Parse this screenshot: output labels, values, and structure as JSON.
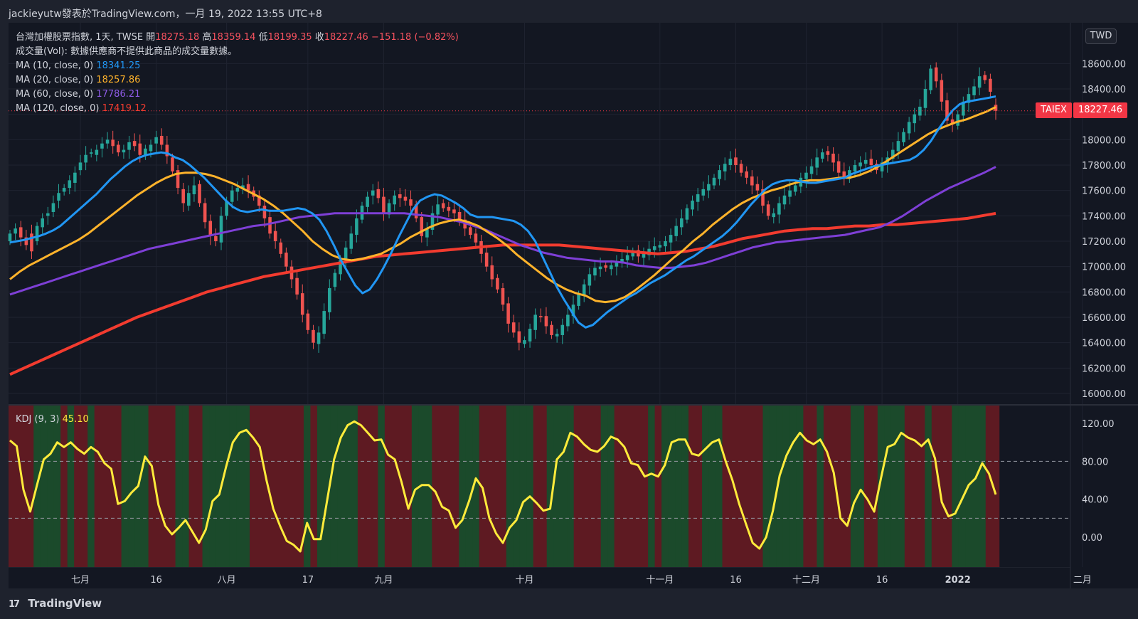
{
  "header": {
    "text": "jackieyutw發表於TradingView.com，一月 19, 2022 13:55 UTC+8"
  },
  "legend": {
    "title_prefix": "台灣加權股票指數, 1天, TWSE",
    "open_label": "開",
    "open": "18275.18",
    "high_label": "高",
    "high": "18359.14",
    "low_label": "低",
    "low": "18199.35",
    "close_label": "收",
    "close": "18227.46",
    "change": "−151.18 (−0.82%)",
    "volume_note": "成交量(Vol): 數據供應商不提供此商品的成交量數據。",
    "ma10_label": "MA (10, close, 0)",
    "ma10": "18341.25",
    "ma20_label": "MA (20, close, 0)",
    "ma20": "18257.86",
    "ma60_label": "MA (60, close, 0)",
    "ma60": "17786.21",
    "ma120_label": "MA (120, close, 0)",
    "ma120": "17419.12"
  },
  "kdj": {
    "label": "KDJ (9, 3)",
    "value": "45.10"
  },
  "tags": {
    "currency": "TWD",
    "symbol": "TAIEX",
    "last_price": "18227.46"
  },
  "brand": {
    "logo": "17",
    "name": "TradingView"
  },
  "colors": {
    "background": "#1e222d",
    "up": "#26a69a",
    "down": "#ef5350",
    "ma10": "#2196f3",
    "ma20": "#ffb32b",
    "ma60": "#7e3fd6",
    "ma120": "#f23b2f",
    "kdj": "#ffeb3b",
    "kdj_bg_up": "#1b4a2b",
    "kdj_bg_down": "#5e1a22"
  },
  "chart_data": [
    {
      "type": "candlestick",
      "ylim": [
        16000,
        18800
      ],
      "y_ticks": [
        "16000.00",
        "16200.00",
        "16400.00",
        "16600.00",
        "16800.00",
        "17000.00",
        "17200.00",
        "17400.00",
        "17600.00",
        "17800.00",
        "18000.00",
        "18200.00",
        "18400.00",
        "18600.00"
      ],
      "x_ticks": [
        {
          "label": "七月",
          "index": 13
        },
        {
          "label": "16",
          "index": 27
        },
        {
          "label": "八月",
          "index": 40
        },
        {
          "label": "17",
          "index": 55
        },
        {
          "label": "九月",
          "index": 69
        },
        {
          "label": "十月",
          "index": 95
        },
        {
          "label": "十一月",
          "index": 120
        },
        {
          "label": "16",
          "index": 134
        },
        {
          "label": "十二月",
          "index": 147
        },
        {
          "label": "16",
          "index": 161
        },
        {
          "label": "2022",
          "index": 175
        },
        {
          "label": "二月",
          "index": 198
        }
      ],
      "close_series": [
        17260,
        17300,
        17230,
        17170,
        17120,
        17320,
        17380,
        17420,
        17500,
        17580,
        17620,
        17680,
        17740,
        17820,
        17880,
        17900,
        17920,
        17970,
        18000,
        17950,
        17900,
        17920,
        17980,
        17950,
        17880,
        17930,
        17960,
        18020,
        17960,
        17870,
        17750,
        17620,
        17500,
        17580,
        17640,
        17500,
        17350,
        17240,
        17200,
        17400,
        17520,
        17600,
        17620,
        17640,
        17600,
        17550,
        17480,
        17380,
        17260,
        17200,
        17100,
        17000,
        16900,
        16780,
        16620,
        16500,
        16400,
        16480,
        16650,
        16830,
        16950,
        17050,
        17150,
        17260,
        17380,
        17480,
        17550,
        17600,
        17540,
        17420,
        17500,
        17560,
        17540,
        17520,
        17480,
        17380,
        17240,
        17300,
        17420,
        17490,
        17460,
        17440,
        17420,
        17360,
        17300,
        17250,
        17190,
        17100,
        17000,
        16900,
        16820,
        16700,
        16550,
        16480,
        16400,
        16420,
        16510,
        16620,
        16600,
        16530,
        16460,
        16470,
        16540,
        16620,
        16700,
        16780,
        16860,
        16940,
        16990,
        17000,
        16990,
        17010,
        17040,
        17060,
        17090,
        17120,
        17080,
        17100,
        17140,
        17160,
        17170,
        17200,
        17250,
        17320,
        17380,
        17460,
        17520,
        17570,
        17610,
        17650,
        17700,
        17760,
        17810,
        17850,
        17800,
        17740,
        17700,
        17640,
        17600,
        17480,
        17400,
        17420,
        17500,
        17560,
        17600,
        17640,
        17700,
        17740,
        17790,
        17860,
        17900,
        17880,
        17820,
        17740,
        17700,
        17760,
        17800,
        17820,
        17840,
        17800,
        17760,
        17820,
        17860,
        17920,
        17990,
        18060,
        18140,
        18200,
        18260,
        18400,
        18560,
        18460,
        18300,
        18150,
        18120,
        18200,
        18300,
        18360,
        18420,
        18500,
        18470,
        18378,
        18227
      ],
      "open_series": [
        17200,
        17260,
        17310,
        17230,
        17260,
        17200,
        17310,
        17400,
        17430,
        17520,
        17590,
        17620,
        17660,
        17760,
        17820,
        17890,
        17880,
        17930,
        17970,
        18000,
        17960,
        17900,
        17920,
        17990,
        17970,
        17870,
        17910,
        17970,
        18030,
        17960,
        17860,
        17760,
        17610,
        17480,
        17570,
        17650,
        17500,
        17360,
        17240,
        17190,
        17400,
        17510,
        17590,
        17610,
        17650,
        17600,
        17560,
        17480,
        17390,
        17280,
        17190,
        17110,
        17000,
        16910,
        16790,
        16630,
        16500,
        16390,
        16470,
        16640,
        16840,
        16940,
        17050,
        17140,
        17250,
        17370,
        17470,
        17560,
        17610,
        17550,
        17410,
        17490,
        17570,
        17550,
        17530,
        17490,
        17390,
        17230,
        17290,
        17410,
        17500,
        17470,
        17450,
        17430,
        17370,
        17310,
        17260,
        17200,
        17110,
        17010,
        16910,
        16830,
        16710,
        16560,
        16490,
        16390,
        16410,
        16500,
        16610,
        16610,
        16540,
        16450,
        16460,
        16530,
        16610,
        16690,
        16770,
        16850,
        16930,
        16980,
        17010,
        16980,
        17000,
        17030,
        17050,
        17080,
        17130,
        17070,
        17090,
        17130,
        17150,
        17160,
        17190,
        17240,
        17310,
        17370,
        17450,
        17510,
        17560,
        17600,
        17640,
        17690,
        17750,
        17800,
        17860,
        17810,
        17750,
        17710,
        17650,
        17610,
        17490,
        17390,
        17410,
        17490,
        17550,
        17590,
        17630,
        17690,
        17730,
        17780,
        17850,
        17910,
        17890,
        17830,
        17750,
        17690,
        17750,
        17790,
        17810,
        17850,
        17810,
        17750,
        17810,
        17850,
        17910,
        17980,
        18050,
        18130,
        18190,
        18250,
        18390,
        18570,
        18470,
        18310,
        18160,
        18110,
        18190,
        18290,
        18350,
        18410,
        18510,
        18480,
        18275
      ],
      "ma10": [
        17190,
        17200,
        17210,
        17225,
        17240,
        17260,
        17285,
        17320,
        17370,
        17420,
        17470,
        17520,
        17570,
        17630,
        17690,
        17740,
        17790,
        17830,
        17860,
        17880,
        17890,
        17900,
        17890,
        17860,
        17840,
        17800,
        17750,
        17700,
        17640,
        17580,
        17520,
        17470,
        17440,
        17430,
        17440,
        17450,
        17440,
        17440,
        17440,
        17450,
        17460,
        17450,
        17420,
        17370,
        17280,
        17170,
        17050,
        16950,
        16850,
        16790,
        16820,
        16900,
        17000,
        17110,
        17230,
        17340,
        17450,
        17520,
        17550,
        17570,
        17560,
        17530,
        17500,
        17460,
        17410,
        17390,
        17390,
        17390,
        17380,
        17370,
        17360,
        17330,
        17280,
        17200,
        17080,
        16960,
        16840,
        16740,
        16650,
        16560,
        16520,
        16540,
        16590,
        16640,
        16680,
        16720,
        16760,
        16790,
        16830,
        16870,
        16900,
        16930,
        16970,
        17010,
        17050,
        17080,
        17120,
        17160,
        17200,
        17240,
        17290,
        17350,
        17420,
        17490,
        17550,
        17610,
        17650,
        17670,
        17680,
        17680,
        17670,
        17660,
        17660,
        17670,
        17680,
        17690,
        17700,
        17730,
        17750,
        17770,
        17790,
        17800,
        17810,
        17820,
        17830,
        17840,
        17870,
        17920,
        17990,
        18080,
        18160,
        18230,
        18280,
        18300,
        18310,
        18320,
        18330,
        18341
      ],
      "ma20": [
        16900,
        16960,
        17010,
        17050,
        17090,
        17130,
        17170,
        17210,
        17260,
        17320,
        17380,
        17440,
        17500,
        17560,
        17610,
        17660,
        17700,
        17730,
        17740,
        17740,
        17730,
        17710,
        17680,
        17650,
        17610,
        17570,
        17530,
        17480,
        17420,
        17350,
        17280,
        17200,
        17140,
        17090,
        17060,
        17050,
        17060,
        17080,
        17100,
        17140,
        17180,
        17230,
        17270,
        17310,
        17340,
        17360,
        17370,
        17350,
        17320,
        17270,
        17220,
        17160,
        17090,
        17030,
        16970,
        16910,
        16860,
        16820,
        16790,
        16770,
        16730,
        16720,
        16730,
        16760,
        16810,
        16870,
        16930,
        17000,
        17070,
        17130,
        17200,
        17260,
        17330,
        17390,
        17450,
        17500,
        17540,
        17570,
        17600,
        17620,
        17650,
        17670,
        17680,
        17680,
        17690,
        17700,
        17700,
        17720,
        17750,
        17790,
        17840,
        17890,
        17940,
        17990,
        18040,
        18080,
        18110,
        18140,
        18160,
        18190,
        18220,
        18257
      ],
      "ma60": [
        16780,
        16810,
        16840,
        16870,
        16900,
        16930,
        16960,
        16990,
        17020,
        17050,
        17080,
        17110,
        17140,
        17160,
        17180,
        17200,
        17220,
        17240,
        17260,
        17280,
        17300,
        17320,
        17330,
        17350,
        17370,
        17390,
        17400,
        17410,
        17420,
        17420,
        17420,
        17420,
        17420,
        17420,
        17420,
        17410,
        17400,
        17390,
        17370,
        17350,
        17320,
        17290,
        17250,
        17210,
        17170,
        17140,
        17110,
        17090,
        17070,
        17060,
        17050,
        17040,
        17040,
        17030,
        17010,
        17000,
        16990,
        16990,
        17000,
        17010,
        17030,
        17060,
        17090,
        17120,
        17150,
        17170,
        17190,
        17200,
        17210,
        17220,
        17230,
        17240,
        17250,
        17270,
        17290,
        17310,
        17350,
        17400,
        17460,
        17520,
        17570,
        17620,
        17660,
        17700,
        17740,
        17786
      ],
      "ma120": [
        16150,
        16200,
        16250,
        16300,
        16350,
        16400,
        16450,
        16500,
        16550,
        16600,
        16640,
        16680,
        16720,
        16760,
        16800,
        16830,
        16860,
        16890,
        16920,
        16940,
        16960,
        16980,
        17000,
        17020,
        17040,
        17060,
        17080,
        17090,
        17100,
        17110,
        17120,
        17130,
        17140,
        17150,
        17160,
        17170,
        17170,
        17170,
        17170,
        17170,
        17160,
        17150,
        17140,
        17130,
        17120,
        17110,
        17100,
        17110,
        17120,
        17140,
        17160,
        17190,
        17220,
        17240,
        17260,
        17280,
        17290,
        17300,
        17300,
        17310,
        17320,
        17320,
        17330,
        17330,
        17340,
        17350,
        17360,
        17370,
        17380,
        17400,
        17419
      ]
    },
    {
      "type": "line",
      "title": "KDJ (9, 3)",
      "ylim": [
        -25,
        135
      ],
      "y_ticks": [
        "0.00",
        "40.00",
        "80.00",
        "120.00"
      ],
      "reference_lines": [
        20,
        80
      ],
      "values": [
        102,
        96,
        50,
        27,
        55,
        82,
        88,
        100,
        95,
        100,
        93,
        88,
        95,
        90,
        78,
        72,
        35,
        38,
        47,
        54,
        85,
        75,
        34,
        12,
        3,
        10,
        18,
        6,
        -6,
        8,
        38,
        45,
        74,
        100,
        110,
        113,
        105,
        95,
        60,
        30,
        12,
        -4,
        -8,
        -15,
        15,
        -2,
        -2,
        40,
        82,
        105,
        118,
        122,
        118,
        110,
        102,
        103,
        87,
        82,
        58,
        30,
        50,
        55,
        55,
        48,
        32,
        28,
        10,
        18,
        38,
        62,
        52,
        20,
        4,
        -6,
        10,
        18,
        37,
        43,
        36,
        28,
        30,
        82,
        90,
        110,
        106,
        98,
        92,
        90,
        96,
        106,
        103,
        95,
        78,
        76,
        64,
        67,
        64,
        76,
        100,
        103,
        103,
        88,
        86,
        93,
        100,
        103,
        80,
        60,
        35,
        14,
        -6,
        -12,
        0,
        28,
        65,
        86,
        100,
        110,
        102,
        98,
        103,
        90,
        68,
        20,
        12,
        36,
        50,
        40,
        27,
        62,
        95,
        98,
        110,
        105,
        102,
        96,
        103,
        83,
        37,
        22,
        25,
        40,
        55,
        62,
        78,
        67,
        45
      ]
    }
  ]
}
